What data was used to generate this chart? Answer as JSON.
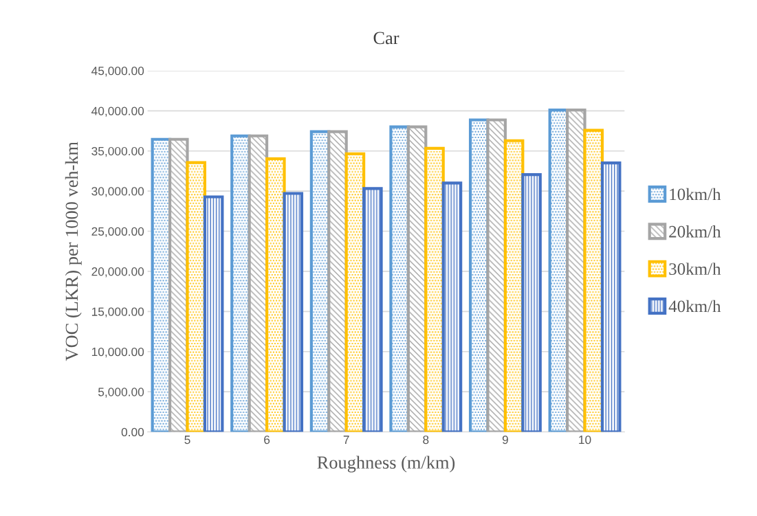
{
  "chart_data": {
    "type": "bar",
    "title": "Car",
    "xlabel": "Roughness (m/km)",
    "ylabel": "VOC (LKR) per 1000 veh-km",
    "categories": [
      "5",
      "6",
      "7",
      "8",
      "9",
      "10"
    ],
    "series": [
      {
        "name": "10km/h",
        "color": "#5b9bd5",
        "values": [
          36450,
          36880,
          37400,
          38000,
          38870,
          40100
        ]
      },
      {
        "name": "20km/h",
        "color": "#a5a5a5",
        "values": [
          36450,
          36880,
          37400,
          38000,
          38870,
          40100
        ]
      },
      {
        "name": "30km/h",
        "color": "#ffc000",
        "values": [
          33550,
          34030,
          34640,
          35330,
          36280,
          37570
        ]
      },
      {
        "name": "40km/h",
        "color": "#4472c4",
        "values": [
          29280,
          29710,
          30320,
          31010,
          32050,
          33510
        ]
      }
    ],
    "ylim": [
      0,
      45000
    ],
    "yticks": [
      {
        "value": 0,
        "label": "0.00"
      },
      {
        "value": 5000,
        "label": "5,000.00"
      },
      {
        "value": 10000,
        "label": "10,000.00"
      },
      {
        "value": 15000,
        "label": "15,000.00"
      },
      {
        "value": 20000,
        "label": "20,000.00"
      },
      {
        "value": 25000,
        "label": "25,000.00"
      },
      {
        "value": 30000,
        "label": "30,000.00"
      },
      {
        "value": 35000,
        "label": "35,000.00"
      },
      {
        "value": 40000,
        "label": "40,000.00"
      },
      {
        "value": 45000,
        "label": "45,000.00"
      }
    ],
    "grid": "y",
    "legend": "right"
  }
}
